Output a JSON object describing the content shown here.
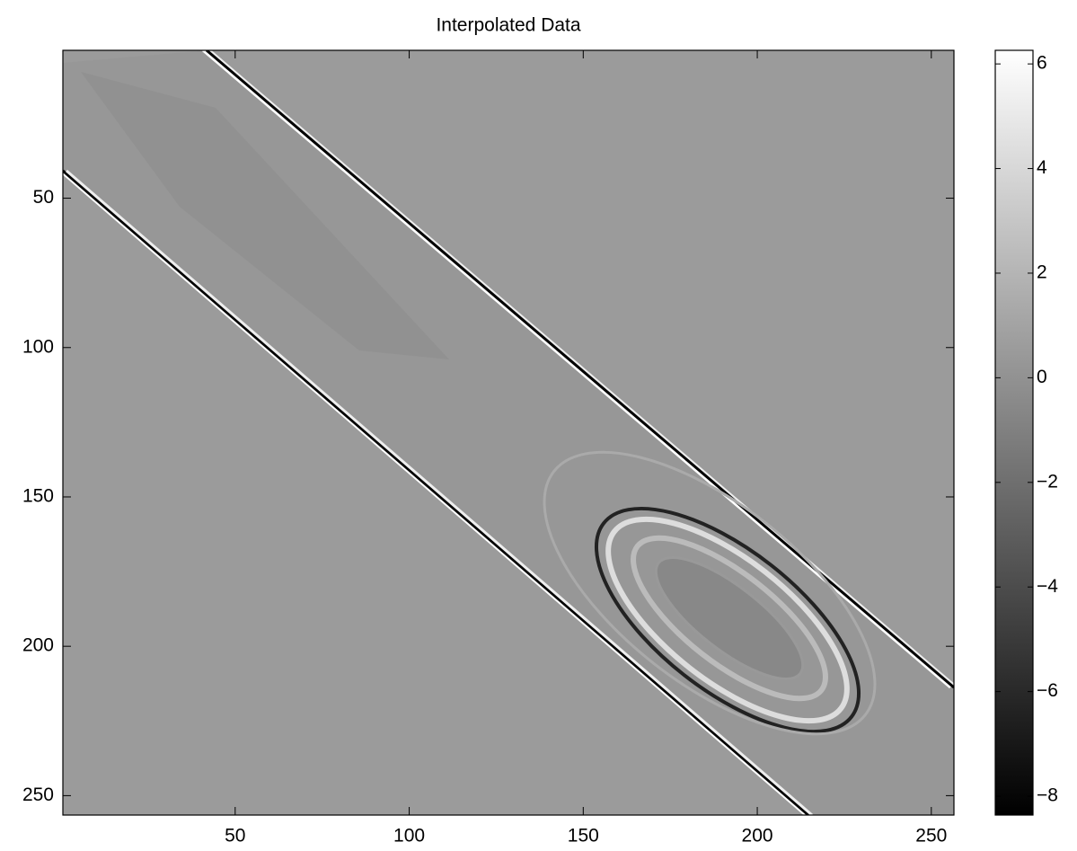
{
  "chart_data": {
    "type": "heatmap",
    "title": "Interpolated Data",
    "colormap": "gray",
    "xlim": [
      0.5,
      256.5
    ],
    "xticks": [
      50,
      100,
      150,
      200,
      250
    ],
    "ylim": [
      0.5,
      256.5
    ],
    "yticks": [
      50,
      100,
      150,
      200,
      250
    ],
    "y_reversed": true,
    "clim": [
      -8.36,
      6.26
    ],
    "cticks": [
      {
        "value": -8,
        "label": "−8"
      },
      {
        "value": -6,
        "label": "−6"
      },
      {
        "value": -4,
        "label": "−4"
      },
      {
        "value": -2,
        "label": "−2"
      },
      0,
      2,
      4,
      6
    ]
  }
}
